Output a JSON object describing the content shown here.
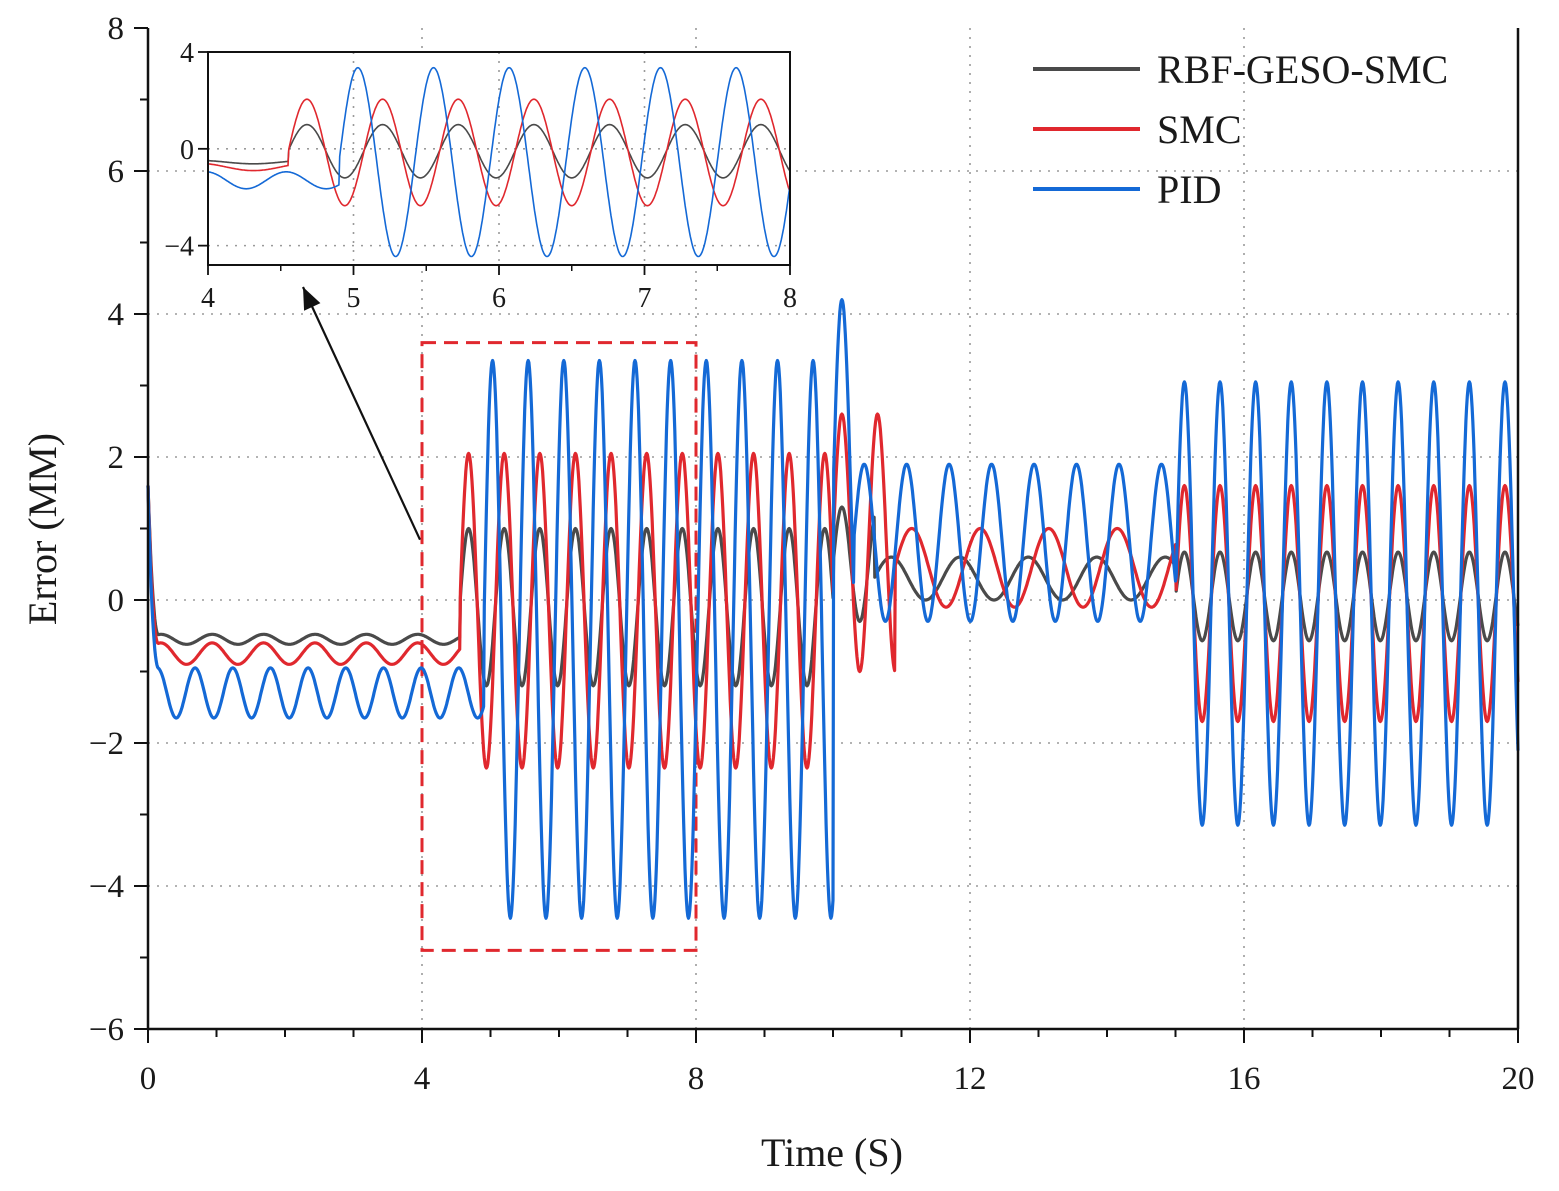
{
  "chart_data": {
    "type": "line",
    "title": "",
    "xlabel": "Time (S)",
    "ylabel": "Error (MM)",
    "xlim": [
      0,
      20
    ],
    "ylim": [
      -6,
      8
    ],
    "xticks": [
      0,
      4,
      8,
      12,
      16,
      20
    ],
    "yticks": [
      -6,
      -4,
      -2,
      0,
      2,
      4,
      6,
      8
    ],
    "xtick_labels": [
      "0",
      "4",
      "8",
      "12",
      "16",
      "20"
    ],
    "ytick_labels": [
      "−6",
      "−4",
      "−2",
      "0",
      "2",
      "4",
      "6",
      "8"
    ],
    "grid": true,
    "legend": {
      "position": "top-right",
      "entries": [
        "RBF-GESO-SMC",
        "SMC",
        "PID"
      ]
    },
    "series": [
      {
        "name": "RBF-GESO-SMC",
        "color": "#4a4a4a",
        "segments": [
          {
            "t0": 0.0,
            "t1": 4.55,
            "offset": -0.55,
            "amp": 0.07,
            "period": 0.75
          },
          {
            "t0": 4.55,
            "t1": 10.0,
            "offset": -0.1,
            "amp": 1.1,
            "period": 0.52
          },
          {
            "t0": 10.0,
            "t1": 10.6,
            "offset": 0.5,
            "amp": 0.8,
            "period": 0.52
          },
          {
            "t0": 10.6,
            "t1": 15.0,
            "offset": 0.3,
            "amp": 0.3,
            "period": 1.0
          },
          {
            "t0": 15.0,
            "t1": 20.0,
            "offset": 0.05,
            "amp": 0.62,
            "period": 0.52
          }
        ]
      },
      {
        "name": "SMC",
        "color": "#e0282e",
        "segments": [
          {
            "t0": 0.0,
            "t1": 4.55,
            "offset": -0.75,
            "amp": 0.15,
            "period": 0.75
          },
          {
            "t0": 4.55,
            "t1": 10.0,
            "offset": -0.15,
            "amp": 2.2,
            "period": 0.52
          },
          {
            "t0": 10.0,
            "t1": 10.9,
            "offset": 0.8,
            "amp": 1.8,
            "period": 0.52
          },
          {
            "t0": 10.9,
            "t1": 15.0,
            "offset": 0.45,
            "amp": 0.55,
            "period": 1.0
          },
          {
            "t0": 15.0,
            "t1": 20.0,
            "offset": -0.05,
            "amp": 1.65,
            "period": 0.52
          }
        ]
      },
      {
        "name": "PID",
        "color": "#1469d6",
        "segments": [
          {
            "t0": 0.0,
            "t1": 4.9,
            "offset": -1.3,
            "amp": 0.35,
            "period": 0.55
          },
          {
            "t0": 4.9,
            "t1": 10.0,
            "offset": -0.55,
            "amp": 3.9,
            "period": 0.52
          },
          {
            "t0": 10.0,
            "t1": 10.3,
            "offset": 1.5,
            "amp": 2.7,
            "period": 0.52
          },
          {
            "t0": 10.3,
            "t1": 15.0,
            "offset": 0.8,
            "amp": 1.1,
            "period": 0.62
          },
          {
            "t0": 15.0,
            "t1": 20.0,
            "offset": -0.05,
            "amp": 3.1,
            "period": 0.52
          }
        ]
      }
    ],
    "zoom_box": {
      "x0": 4,
      "x1": 8,
      "y0": -4.9,
      "y1": 3.6,
      "color": "#e0282e"
    },
    "inset": {
      "xlim": [
        4,
        8
      ],
      "ylim": [
        -4.8,
        4
      ],
      "xticks": [
        4,
        5,
        6,
        7,
        8
      ],
      "yticks": [
        -4,
        0,
        4
      ],
      "xtick_labels": [
        "4",
        "5",
        "6",
        "7",
        "8"
      ],
      "ytick_labels": [
        "−4",
        "0",
        "4"
      ]
    },
    "annotation": {
      "type": "arrow",
      "from": [
        4.0,
        0.9
      ],
      "to": "inset"
    }
  }
}
